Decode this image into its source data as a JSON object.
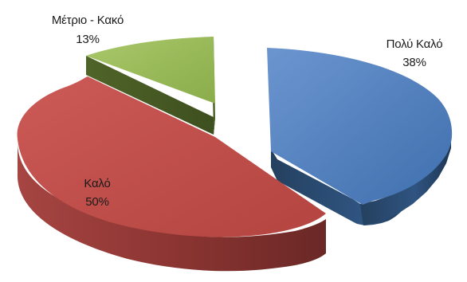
{
  "chart_data": {
    "type": "pie",
    "style": "3d-exploded",
    "slices": [
      {
        "name": "Πολύ Καλό",
        "value": 38,
        "label": "38%",
        "color": "#4f7fbf",
        "side_color": "#2f4e74"
      },
      {
        "name": "Καλό",
        "value": 50,
        "label": "50%",
        "color": "#c0504d",
        "side_color": "#7a2e2b"
      },
      {
        "name": "Μέτριο - Κακό",
        "value": 13,
        "label": "13%",
        "color": "#9bbb59",
        "side_color": "#5c7330"
      }
    ],
    "legend": "none"
  }
}
